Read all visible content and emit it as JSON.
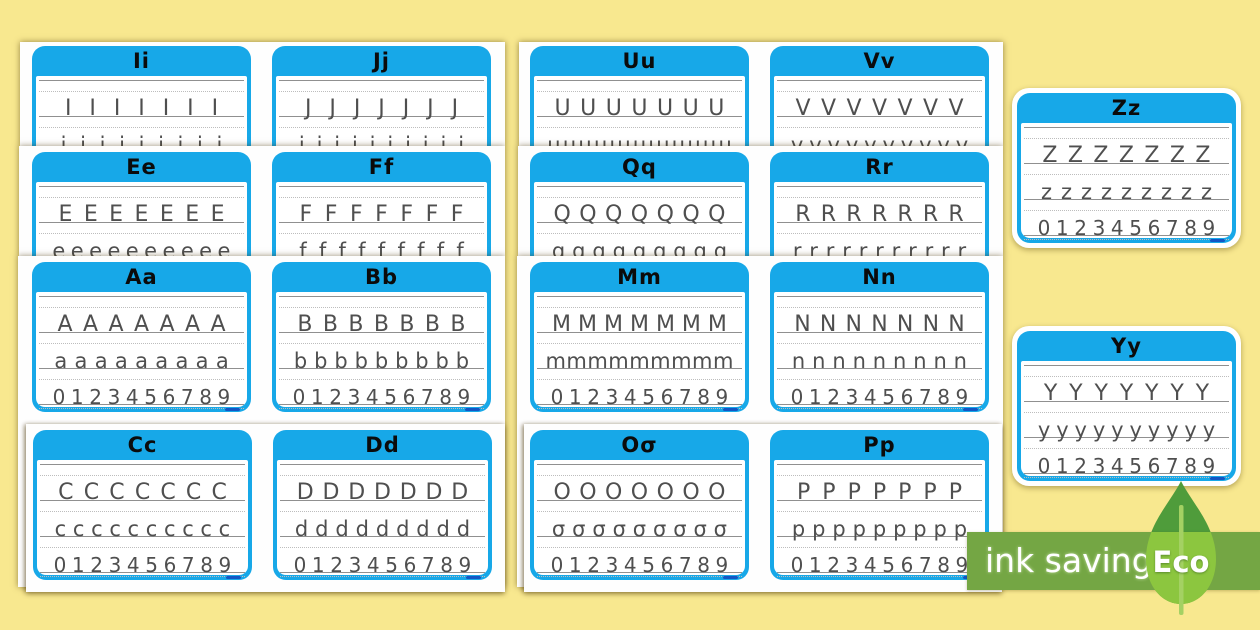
{
  "background_color": "#F8E88F",
  "card_theme": {
    "header_blue": "#17A8E8",
    "title_color": "#0B0B0B",
    "letter_color": "#4F4F4F",
    "solid_line_color": "#909090",
    "dotted_line_color": "#BDBDBD",
    "watermark_blue": "#1356C4",
    "sheet_white": "#FEFEFE"
  },
  "cards": {
    "ii": {
      "title": "Ii",
      "upper": "IIIIIII",
      "lower": "iiiiiiiii"
    },
    "jj": {
      "title": "Jj",
      "upper": "JJJJJJJ",
      "lower": "jjjjjjjjjj"
    },
    "ee": {
      "title": "Ee",
      "upper": "EEEEEEE",
      "lower": "eeeeeeeeee"
    },
    "ff": {
      "title": "Ff",
      "upper": "FFFFFFF",
      "lower": "fffffffff"
    },
    "aa": {
      "title": "Aa",
      "upper": "AAAAAAA",
      "lower": "aaaaaaaaa",
      "numbers": "0123456789"
    },
    "bb": {
      "title": "Bb",
      "upper": "BBBBBBB",
      "lower": "bbbbbbbbb",
      "numbers": "0123456789"
    },
    "cc": {
      "title": "Cc",
      "upper": "CCCCCCC",
      "lower": "cccccccccc",
      "numbers": "0123456789"
    },
    "dd": {
      "title": "Dd",
      "upper": "DDDDDDD",
      "lower": "ddddddddd",
      "numbers": "0123456789"
    },
    "uu": {
      "title": "Uu",
      "upper": "UUUUUUU",
      "lower": "uuuuuuuuuuuu"
    },
    "vv": {
      "title": "Vv",
      "upper": "VVVVVVV",
      "lower": "vvvvvvvvvv"
    },
    "qq": {
      "title": "Qq",
      "upper": "QQQQQQQ",
      "lower": "qqqqqqqqq"
    },
    "rr": {
      "title": "Rr",
      "upper": "RRRRRRR",
      "lower": "rrrrrrrrrrr"
    },
    "mm": {
      "title": "Mm",
      "upper": "MMMMMMM",
      "lower": "mmmmmmmmm",
      "numbers": "0123456789"
    },
    "nn": {
      "title": "Nn",
      "upper": "NNNNNNN",
      "lower": "nnnnnnnnn",
      "numbers": "0123456789"
    },
    "oo": {
      "title": "Oσ",
      "upper": "OOOOOOO",
      "lower": "σσσσσσσσσ",
      "numbers": "0123456789"
    },
    "pp": {
      "title": "Pp",
      "upper": "PPPPPPP",
      "lower": "ppppppppp",
      "numbers": "0123456789"
    },
    "zz": {
      "title": "Zz",
      "upper": "ZZZZZZZ",
      "lower": "zzzzzzzzz",
      "numbers": "0123456789"
    },
    "yy": {
      "title": "Yy",
      "upper": "YYYYYYY",
      "lower": "yyyyyyyyyy",
      "numbers": "0123456789"
    }
  },
  "eco_badge": {
    "label": "ink saving",
    "eco": "Eco",
    "banner_green": "#74A644",
    "leaf_light": "#8CC63F",
    "leaf_dark": "#4F9C3B",
    "stem_green": "#A4D163"
  }
}
